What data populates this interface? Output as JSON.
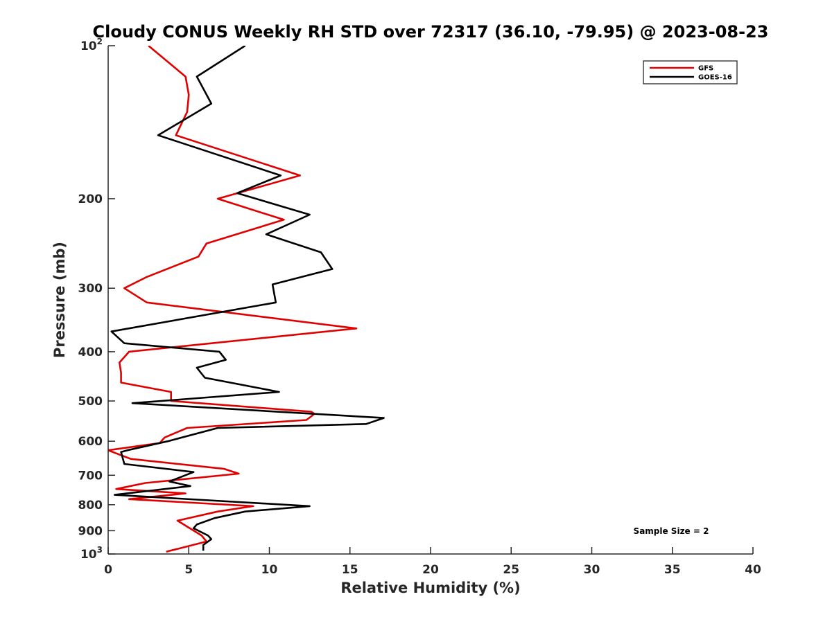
{
  "chart_data": {
    "type": "line",
    "title": "Cloudy CONUS Weekly RH STD over 72317 (36.10, -79.95) @ 2023-08-23",
    "xlabel": "Relative Humidity (%)",
    "ylabel": "Pressure (mb)",
    "xlim": [
      0,
      40
    ],
    "ylim": [
      100,
      1000
    ],
    "y_scale": "log",
    "y_reversed": true,
    "grid": false,
    "legend_position": "top-right",
    "x_ticks": [
      0,
      5,
      10,
      15,
      20,
      25,
      30,
      35,
      40
    ],
    "x_tick_labels": [
      "0",
      "5",
      "10",
      "15",
      "20",
      "25",
      "30",
      "35",
      "40"
    ],
    "y_ticks": [
      {
        "value": 100,
        "base": "10",
        "exp": "2"
      },
      {
        "value": 200,
        "label": "200"
      },
      {
        "value": 300,
        "label": "300"
      },
      {
        "value": 400,
        "label": "400"
      },
      {
        "value": 500,
        "label": "500"
      },
      {
        "value": 600,
        "label": "600"
      },
      {
        "value": 700,
        "label": "700"
      },
      {
        "value": 800,
        "label": "800"
      },
      {
        "value": 900,
        "label": "900"
      },
      {
        "value": 1000,
        "base": "10",
        "exp": "3"
      }
    ],
    "annotation": "Sample Size = 2",
    "series": [
      {
        "name": "GFS",
        "color": "#e00000",
        "points": [
          [
            2.5,
            100
          ],
          [
            4.8,
            115
          ],
          [
            5.0,
            125
          ],
          [
            4.9,
            135
          ],
          [
            4.2,
            150
          ],
          [
            11.9,
            180
          ],
          [
            6.8,
            200
          ],
          [
            10.9,
            220
          ],
          [
            6.1,
            245
          ],
          [
            5.6,
            260
          ],
          [
            2.4,
            285
          ],
          [
            1.0,
            300
          ],
          [
            2.4,
            320
          ],
          [
            15.4,
            360
          ],
          [
            1.3,
            400
          ],
          [
            0.7,
            420
          ],
          [
            0.8,
            440
          ],
          [
            0.8,
            460
          ],
          [
            3.9,
            480
          ],
          [
            3.9,
            500
          ],
          [
            12.6,
            525
          ],
          [
            12.8,
            530
          ],
          [
            12.3,
            545
          ],
          [
            4.9,
            565
          ],
          [
            3.5,
            590
          ],
          [
            3.2,
            605
          ],
          [
            0.0,
            625
          ],
          [
            1.4,
            650
          ],
          [
            7.2,
            680
          ],
          [
            8.1,
            695
          ],
          [
            2.3,
            725
          ],
          [
            0.5,
            745
          ],
          [
            4.8,
            760
          ],
          [
            1.3,
            780
          ],
          [
            9.0,
            805
          ],
          [
            6.8,
            825
          ],
          [
            4.3,
            860
          ],
          [
            5.8,
            920
          ],
          [
            6.1,
            945
          ],
          [
            3.6,
            990
          ]
        ]
      },
      {
        "name": "GOES-16",
        "color": "#000000",
        "points": [
          [
            8.5,
            100
          ],
          [
            5.5,
            115
          ],
          [
            6.4,
            130
          ],
          [
            3.1,
            150
          ],
          [
            10.7,
            180
          ],
          [
            8.0,
            195
          ],
          [
            12.5,
            215
          ],
          [
            9.8,
            235
          ],
          [
            13.2,
            255
          ],
          [
            13.9,
            275
          ],
          [
            10.2,
            295
          ],
          [
            10.4,
            320
          ],
          [
            0.2,
            365
          ],
          [
            1.0,
            385
          ],
          [
            6.9,
            400
          ],
          [
            7.3,
            415
          ],
          [
            5.5,
            430
          ],
          [
            6.0,
            450
          ],
          [
            10.6,
            480
          ],
          [
            1.5,
            505
          ],
          [
            17.1,
            540
          ],
          [
            16.0,
            555
          ],
          [
            6.8,
            565
          ],
          [
            3.7,
            600
          ],
          [
            1.2,
            625
          ],
          [
            0.8,
            630
          ],
          [
            1.0,
            665
          ],
          [
            5.3,
            690
          ],
          [
            3.8,
            720
          ],
          [
            5.1,
            735
          ],
          [
            0.4,
            765
          ],
          [
            12.5,
            805
          ],
          [
            8.5,
            825
          ],
          [
            6.6,
            850
          ],
          [
            5.5,
            875
          ],
          [
            5.3,
            890
          ],
          [
            6.2,
            920
          ],
          [
            6.4,
            935
          ],
          [
            5.9,
            960
          ],
          [
            5.9,
            985
          ]
        ]
      }
    ]
  }
}
